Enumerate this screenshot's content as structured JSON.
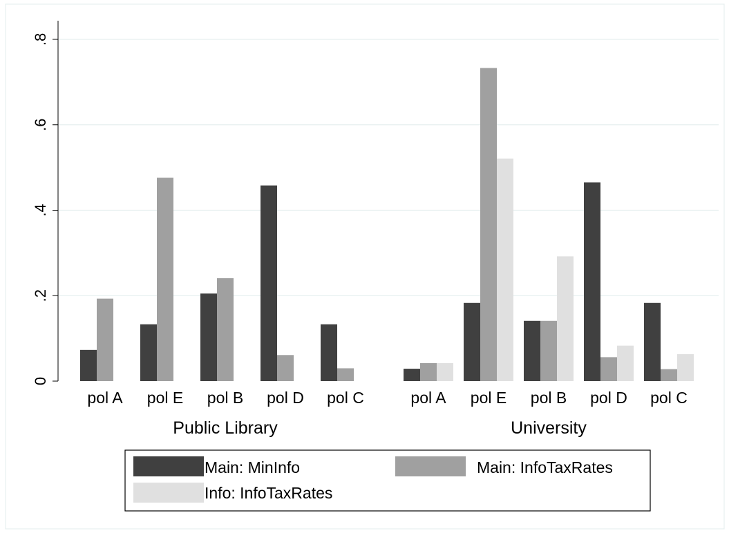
{
  "chart_data": {
    "type": "bar",
    "title": "",
    "xlabel": "",
    "ylabel": "",
    "ylim": [
      0,
      0.8
    ],
    "yticks": [
      0,
      0.2,
      0.4,
      0.6,
      0.8
    ],
    "ytick_labels": [
      "0",
      ".2",
      ".4",
      ".6",
      ".8"
    ],
    "grid": true,
    "legend_position": "bottom",
    "groups": [
      {
        "label": "Public Library",
        "categories": [
          "pol A",
          "pol E",
          "pol B",
          "pol D",
          "pol C"
        ],
        "series": [
          {
            "name": "Main: MinInfo",
            "values": [
              0.073,
              0.133,
              0.205,
              0.458,
              0.133
            ]
          },
          {
            "name": "Main: InfoTaxRates",
            "values": [
              0.193,
              0.476,
              0.241,
              0.061,
              0.03
            ]
          },
          {
            "name": "Info: InfoTaxRates",
            "values": [
              0,
              0,
              0,
              0,
              0
            ]
          }
        ]
      },
      {
        "label": "University",
        "categories": [
          "pol A",
          "pol E",
          "pol B",
          "pol D",
          "pol C"
        ],
        "series": [
          {
            "name": "Main: MinInfo",
            "values": [
              0.029,
              0.183,
              0.141,
              0.465,
              0.183
            ]
          },
          {
            "name": "Main: InfoTaxRates",
            "values": [
              0.042,
              0.733,
              0.141,
              0.056,
              0.028
            ]
          },
          {
            "name": "Info: InfoTaxRates",
            "values": [
              0.042,
              0.521,
              0.292,
              0.083,
              0.063
            ]
          }
        ]
      }
    ],
    "legend": [
      {
        "name": "Main: MinInfo",
        "color": "#404040"
      },
      {
        "name": "Main: InfoTaxRates",
        "color": "#a0a0a0"
      },
      {
        "name": "Info: InfoTaxRates",
        "color": "#e0e0e0"
      }
    ],
    "colors": {
      "series1": "#404040",
      "series2": "#a0a0a0",
      "series3": "#e0e0e0",
      "grid": "#e6efef",
      "frame": "#d8e6e6"
    }
  }
}
